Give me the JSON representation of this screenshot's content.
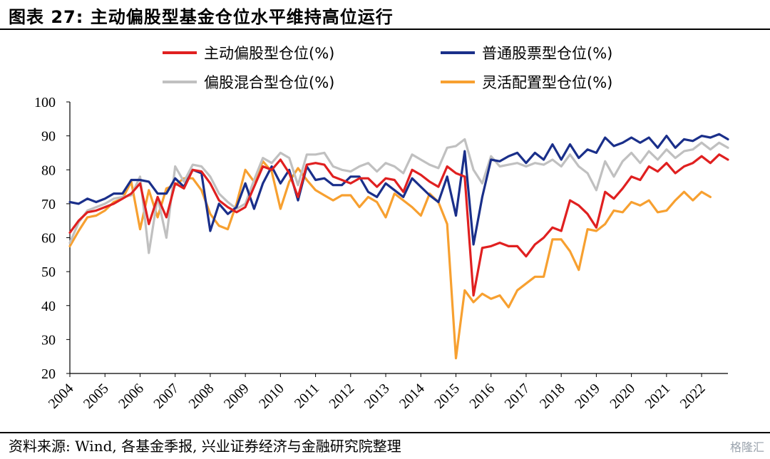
{
  "title": "图表 27:  主动偏股型基金仓位水平维持高位运行",
  "source": "资料来源:  Wind,  各基金季报,  兴业证券经济与金融研究院整理",
  "watermark": "格隆汇",
  "chart_data": {
    "type": "line",
    "ylim": [
      20,
      100
    ],
    "yticks": [
      20,
      30,
      40,
      50,
      60,
      70,
      80,
      90,
      100
    ],
    "x_tick_labels": [
      "2004",
      "2005",
      "2006",
      "2007",
      "2008",
      "2009",
      "2010",
      "2011",
      "2012",
      "2013",
      "2014",
      "2015",
      "2016",
      "2017",
      "2018",
      "2019",
      "2020",
      "2021",
      "2022"
    ],
    "x_start": 2004.0,
    "x_step": 0.25,
    "legend_position": "top",
    "series": [
      {
        "name": "主动偏股型仓位(%)",
        "color": "#e02020",
        "values": [
          61.5,
          65,
          67.5,
          68,
          69,
          70,
          71.5,
          73,
          76,
          64,
          72,
          66,
          76,
          74.5,
          80,
          79.5,
          76,
          71,
          69,
          67.5,
          69,
          75,
          81,
          80,
          83,
          79,
          72,
          81.5,
          82,
          81.5,
          78,
          77,
          76,
          77.5,
          77.5,
          75,
          77.5,
          77,
          73.5,
          80,
          78.5,
          76.5,
          75,
          81,
          79,
          78,
          43,
          57,
          57.5,
          58.5,
          57.5,
          57.5,
          54.5,
          58,
          60,
          63,
          62,
          71,
          69.5,
          67,
          63,
          73.5,
          71.5,
          74.5,
          78,
          77,
          81,
          79.5,
          82,
          79,
          81,
          82,
          84,
          82,
          84.5,
          83
        ]
      },
      {
        "name": "普通股票型仓位(%)",
        "color": "#1a2f8a",
        "values": [
          70.5,
          70,
          71.5,
          70.5,
          71.5,
          73,
          73,
          77,
          77,
          76.5,
          73,
          73,
          77.5,
          75,
          80,
          79,
          62,
          70,
          67,
          69,
          76,
          68.5,
          76,
          81,
          76,
          80,
          71,
          81,
          77,
          77.5,
          75.5,
          75.5,
          78,
          78,
          73.5,
          72,
          76,
          74,
          72,
          77.5,
          75,
          72.5,
          70.5,
          78,
          66.5,
          85.5,
          58,
          72,
          83,
          82.5,
          84,
          85,
          82,
          85,
          83,
          87.5,
          83,
          87.5,
          83.5,
          86,
          85,
          89.5,
          87,
          88,
          89.5,
          88,
          89.5,
          86.5,
          90,
          86.5,
          89,
          88.5,
          90,
          89.5,
          90.5,
          89
        ]
      },
      {
        "name": "偏股混合型仓位(%)",
        "color": "#c0c0c0",
        "values": [
          58.5,
          64.5,
          68,
          69,
          70,
          71.5,
          72,
          72.5,
          78,
          55.5,
          72,
          60,
          81,
          76.5,
          81.5,
          81,
          78,
          73,
          70.5,
          68.5,
          70,
          77,
          83.5,
          82,
          85,
          83.5,
          75.5,
          84.5,
          84.5,
          85,
          81,
          80,
          79.5,
          81,
          82,
          79.5,
          82,
          81,
          79,
          84.5,
          83,
          81.5,
          80.5,
          86.5,
          87,
          89,
          80,
          76,
          84,
          81,
          81.5,
          82,
          81,
          82,
          81.5,
          83,
          81,
          84.5,
          81,
          79,
          74,
          82.5,
          78,
          82.5,
          85,
          82,
          85.5,
          83,
          86,
          83.5,
          85.5,
          86,
          88,
          86,
          88,
          86.5
        ]
      },
      {
        "name": "灵活配置型仓位(%)",
        "color": "#f7a030",
        "values": [
          57.5,
          62,
          66,
          66.5,
          68,
          70.5,
          71.5,
          76.5,
          62.5,
          74,
          66,
          74.5,
          75.5,
          77.5,
          77.5,
          74,
          67,
          63.5,
          62.5,
          70,
          80,
          76.5,
          82.5,
          79.5,
          68.5,
          76.5,
          80.5,
          77,
          74,
          72.5,
          71,
          72.5,
          72.5,
          69,
          72,
          70.5,
          66,
          73,
          71,
          69,
          66.5,
          73,
          70.5,
          64,
          24.5,
          44.5,
          41,
          43.5,
          42,
          43,
          39.5,
          44.5,
          46.5,
          48.5,
          48.5,
          59.5,
          59.5,
          56,
          50.5,
          62.5,
          62,
          64,
          68,
          67.5,
          70.5,
          69.5,
          71,
          67.5,
          68,
          71,
          73.5,
          71,
          73.5,
          72
        ]
      }
    ]
  }
}
